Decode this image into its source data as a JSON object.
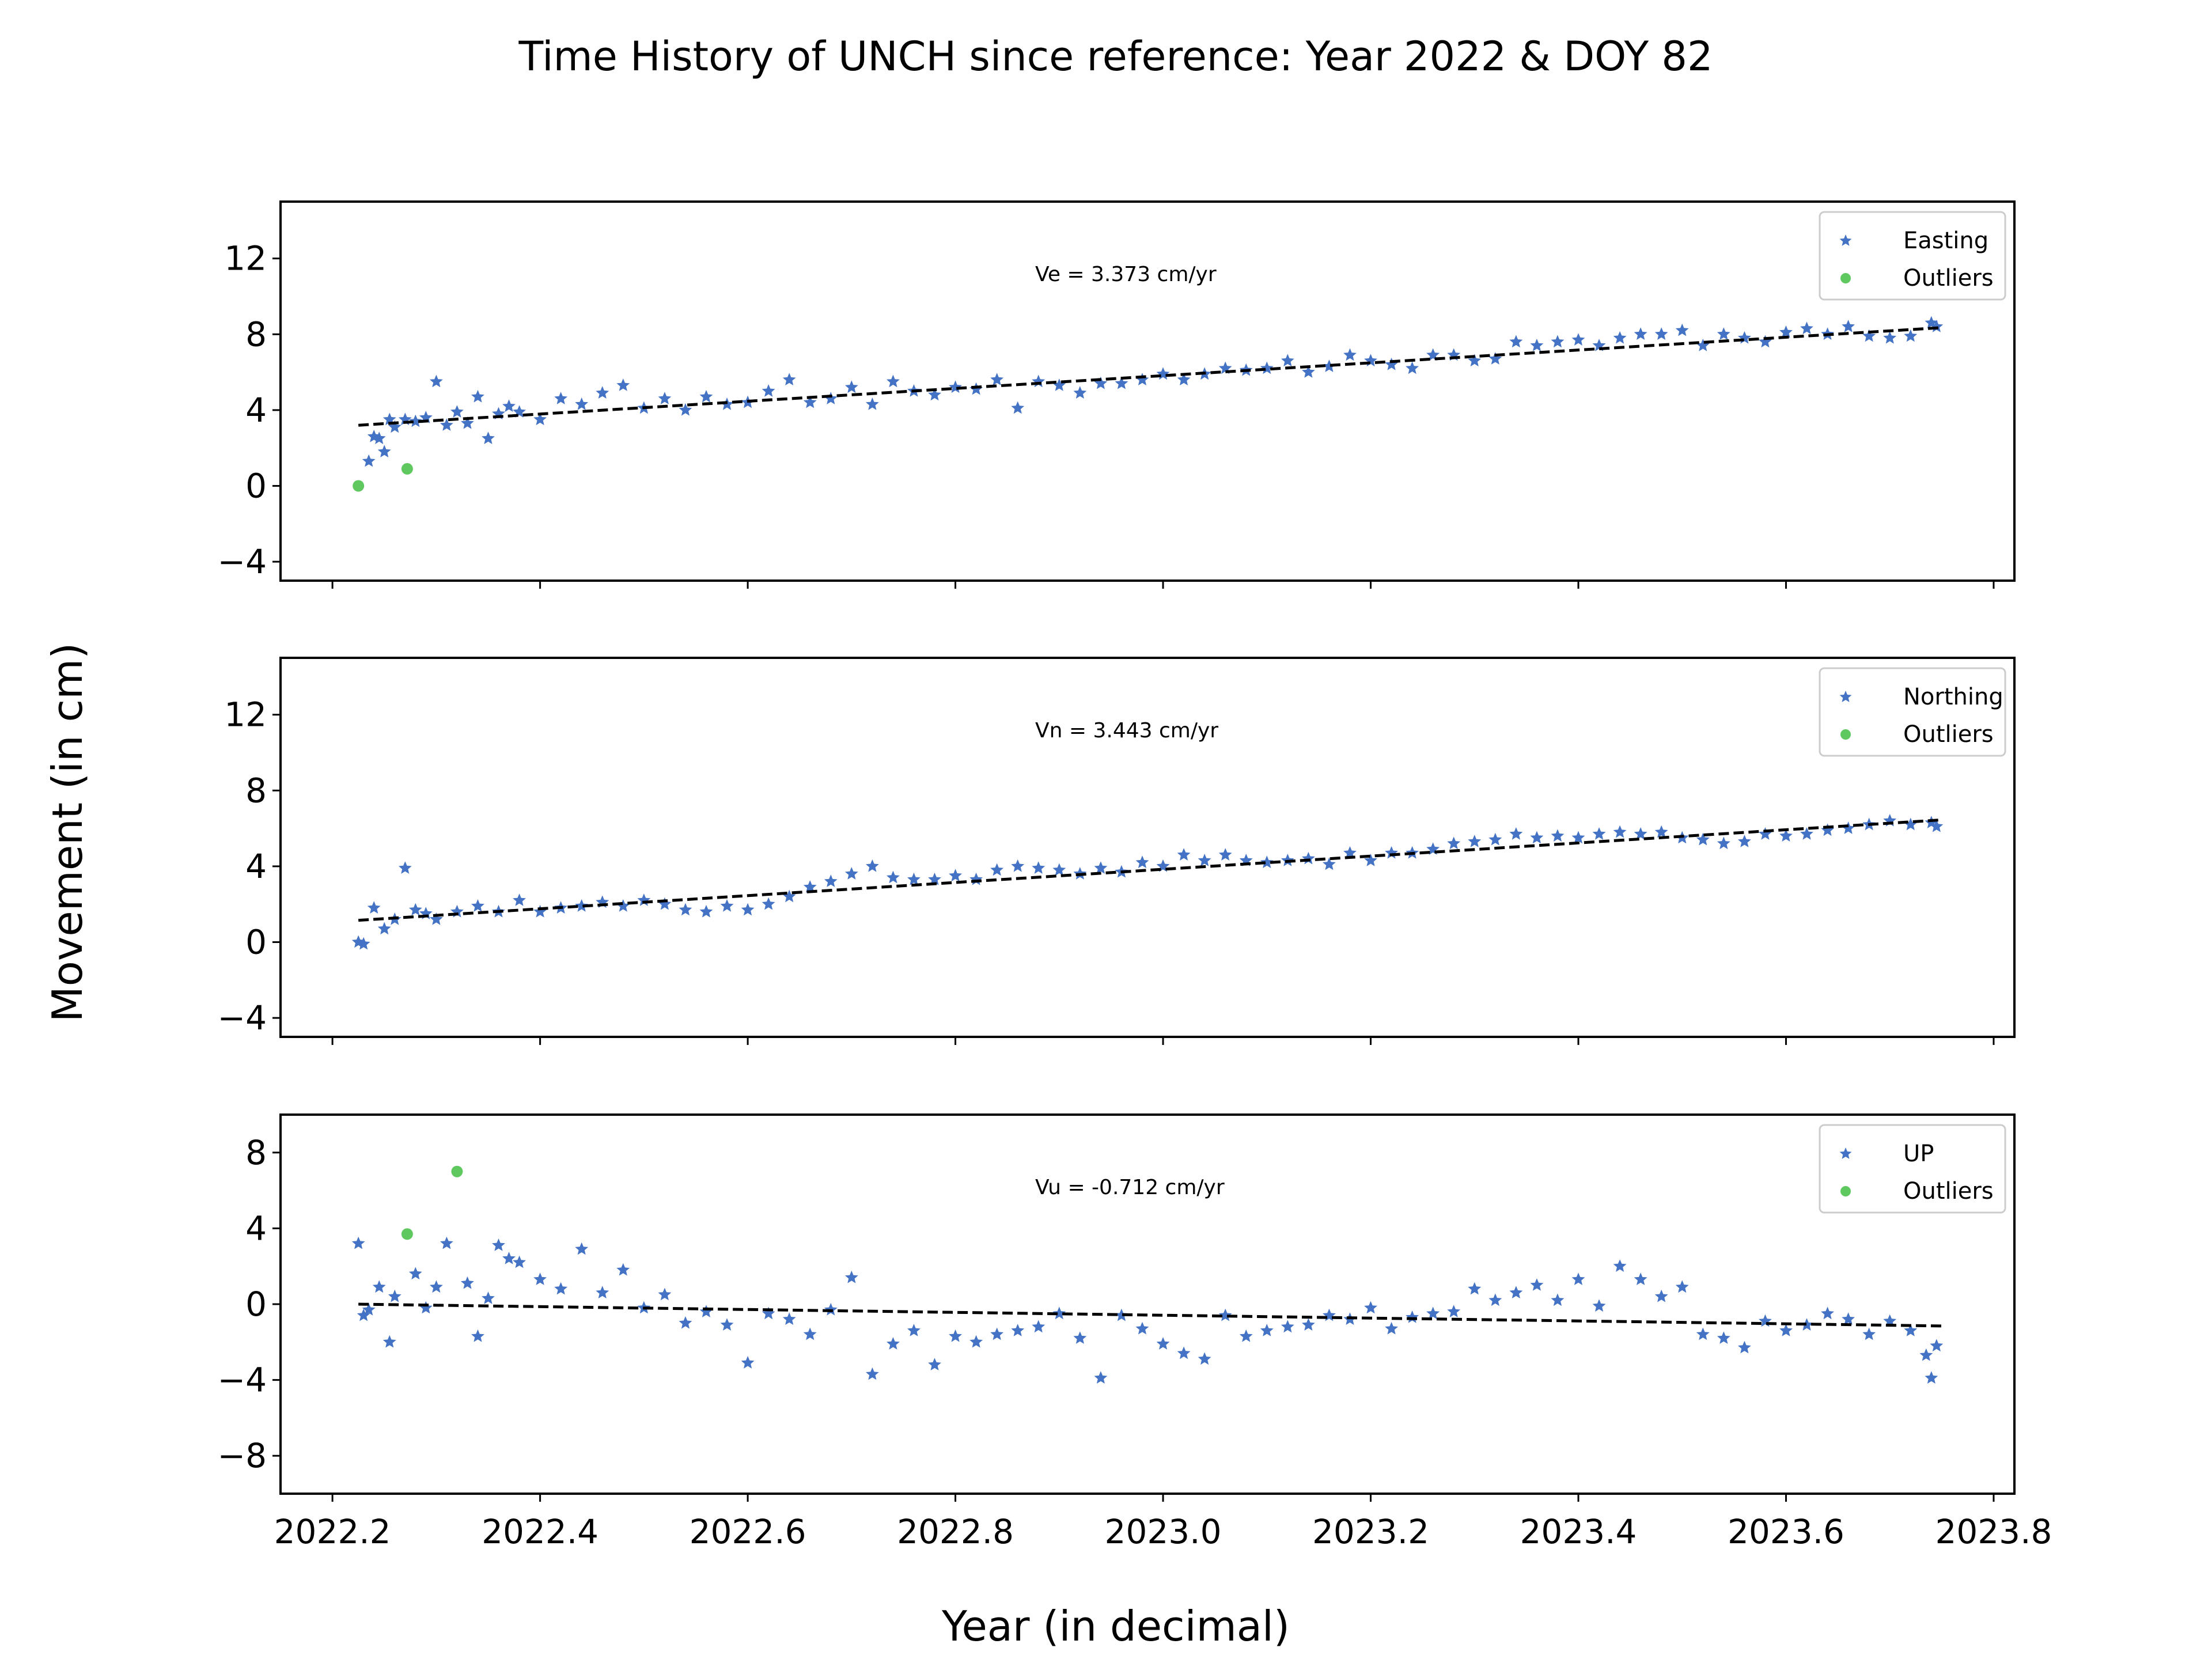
{
  "figure": {
    "title": "Time History of UNCH since reference: Year 2022 & DOY 82",
    "xlabel": "Year (in decimal)",
    "ylabel": "Movement (in cm)"
  },
  "colors": {
    "data": "#4472c4",
    "outliers": "#5fc95f",
    "trend": "#000000"
  },
  "chart_data": [
    {
      "type": "scatter",
      "panel": "easting",
      "legend": [
        "Easting",
        "Outliers"
      ],
      "legend_position": "upper right",
      "annotation": "Ve =  3.373 cm/yr",
      "xlim": [
        2022.15,
        2023.82
      ],
      "ylim": [
        -5,
        15
      ],
      "yticks": [
        -4,
        0,
        4,
        8,
        12
      ],
      "ytick_labels": [
        "−4",
        "0",
        "4",
        "8",
        "12"
      ],
      "xtick_labels_visible": false,
      "series": [
        {
          "name": "Easting",
          "marker": "star",
          "x": [
            2022.235,
            2022.24,
            2022.245,
            2022.25,
            2022.255,
            2022.26,
            2022.27,
            2022.28,
            2022.29,
            2022.3,
            2022.31,
            2022.32,
            2022.33,
            2022.34,
            2022.35,
            2022.36,
            2022.37,
            2022.38,
            2022.4,
            2022.42,
            2022.44,
            2022.46,
            2022.48,
            2022.5,
            2022.52,
            2022.54,
            2022.56,
            2022.58,
            2022.6,
            2022.62,
            2022.64,
            2022.66,
            2022.68,
            2022.7,
            2022.72,
            2022.74,
            2022.76,
            2022.78,
            2022.8,
            2022.82,
            2022.84,
            2022.86,
            2022.88,
            2022.9,
            2022.92,
            2022.94,
            2022.96,
            2022.98,
            2023.0,
            2023.02,
            2023.04,
            2023.06,
            2023.08,
            2023.1,
            2023.12,
            2023.14,
            2023.16,
            2023.18,
            2023.2,
            2023.22,
            2023.24,
            2023.26,
            2023.28,
            2023.3,
            2023.32,
            2023.34,
            2023.36,
            2023.38,
            2023.4,
            2023.42,
            2023.44,
            2023.46,
            2023.48,
            2023.5,
            2023.52,
            2023.54,
            2023.56,
            2023.58,
            2023.6,
            2023.62,
            2023.64,
            2023.66,
            2023.68,
            2023.7,
            2023.72,
            2023.74,
            2023.745
          ],
          "y": [
            1.3,
            2.6,
            2.5,
            1.8,
            3.5,
            3.1,
            3.5,
            3.4,
            3.6,
            5.5,
            3.2,
            3.9,
            3.3,
            4.7,
            2.5,
            3.8,
            4.2,
            3.9,
            3.5,
            4.6,
            4.3,
            4.9,
            5.3,
            4.1,
            4.6,
            4.0,
            4.7,
            4.3,
            4.4,
            5.0,
            5.6,
            4.4,
            4.6,
            5.2,
            4.3,
            5.5,
            5.0,
            4.8,
            5.2,
            5.1,
            5.6,
            4.1,
            5.5,
            5.3,
            4.9,
            5.4,
            5.4,
            5.6,
            5.9,
            5.6,
            5.9,
            6.2,
            6.1,
            6.2,
            6.6,
            6.0,
            6.3,
            6.9,
            6.6,
            6.4,
            6.2,
            6.9,
            6.9,
            6.6,
            6.7,
            7.6,
            7.4,
            7.6,
            7.7,
            7.4,
            7.8,
            8.0,
            8.0,
            8.2,
            7.4,
            8.0,
            7.8,
            7.6,
            8.1,
            8.3,
            8.0,
            8.4,
            7.9,
            7.8,
            7.9,
            8.6,
            8.4
          ]
        },
        {
          "name": "Outliers",
          "marker": "circle",
          "x": [
            2022.225,
            2022.272
          ],
          "y": [
            0.0,
            0.9
          ]
        }
      ],
      "trend": {
        "x": [
          2022.225,
          2023.75
        ],
        "y": [
          3.2,
          8.35
        ]
      }
    },
    {
      "type": "scatter",
      "panel": "northing",
      "legend": [
        "Northing",
        "Outliers"
      ],
      "legend_position": "upper right",
      "annotation": "Vn =  3.443 cm/yr",
      "xlim": [
        2022.15,
        2023.82
      ],
      "ylim": [
        -5,
        15
      ],
      "yticks": [
        -4,
        0,
        4,
        8,
        12
      ],
      "ytick_labels": [
        "−4",
        "0",
        "4",
        "8",
        "12"
      ],
      "xtick_labels_visible": false,
      "series": [
        {
          "name": "Northing",
          "marker": "star",
          "x": [
            2022.225,
            2022.23,
            2022.24,
            2022.25,
            2022.26,
            2022.27,
            2022.28,
            2022.29,
            2022.3,
            2022.32,
            2022.34,
            2022.36,
            2022.38,
            2022.4,
            2022.42,
            2022.44,
            2022.46,
            2022.48,
            2022.5,
            2022.52,
            2022.54,
            2022.56,
            2022.58,
            2022.6,
            2022.62,
            2022.64,
            2022.66,
            2022.68,
            2022.7,
            2022.72,
            2022.74,
            2022.76,
            2022.78,
            2022.8,
            2022.82,
            2022.84,
            2022.86,
            2022.88,
            2022.9,
            2022.92,
            2022.94,
            2022.96,
            2022.98,
            2023.0,
            2023.02,
            2023.04,
            2023.06,
            2023.08,
            2023.1,
            2023.12,
            2023.14,
            2023.16,
            2023.18,
            2023.2,
            2023.22,
            2023.24,
            2023.26,
            2023.28,
            2023.3,
            2023.32,
            2023.34,
            2023.36,
            2023.38,
            2023.4,
            2023.42,
            2023.44,
            2023.46,
            2023.48,
            2023.5,
            2023.52,
            2023.54,
            2023.56,
            2023.58,
            2023.6,
            2023.62,
            2023.64,
            2023.66,
            2023.68,
            2023.7,
            2023.72,
            2023.74,
            2023.745
          ],
          "y": [
            0.0,
            -0.1,
            1.8,
            0.7,
            1.2,
            3.9,
            1.7,
            1.5,
            1.2,
            1.6,
            1.9,
            1.6,
            2.2,
            1.6,
            1.8,
            1.9,
            2.1,
            1.9,
            2.2,
            2.0,
            1.7,
            1.6,
            1.9,
            1.7,
            2.0,
            2.4,
            2.9,
            3.2,
            3.6,
            4.0,
            3.4,
            3.3,
            3.3,
            3.5,
            3.3,
            3.8,
            4.0,
            3.9,
            3.8,
            3.6,
            3.9,
            3.7,
            4.2,
            4.0,
            4.6,
            4.3,
            4.6,
            4.3,
            4.2,
            4.3,
            4.4,
            4.1,
            4.7,
            4.3,
            4.7,
            4.7,
            4.9,
            5.2,
            5.3,
            5.4,
            5.7,
            5.5,
            5.6,
            5.5,
            5.7,
            5.8,
            5.7,
            5.8,
            5.5,
            5.4,
            5.2,
            5.3,
            5.7,
            5.6,
            5.7,
            5.9,
            6.0,
            6.2,
            6.4,
            6.2,
            6.3,
            6.1
          ]
        },
        {
          "name": "Outliers",
          "marker": "circle",
          "x": [],
          "y": []
        }
      ],
      "trend": {
        "x": [
          2022.225,
          2023.75
        ],
        "y": [
          1.15,
          6.45
        ]
      }
    },
    {
      "type": "scatter",
      "panel": "up",
      "legend": [
        "UP",
        "Outliers"
      ],
      "legend_position": "upper right",
      "annotation": "Vu = -0.712 cm/yr",
      "xlim": [
        2022.15,
        2023.82
      ],
      "ylim": [
        -10,
        10
      ],
      "yticks": [
        -8,
        -4,
        0,
        4,
        8
      ],
      "ytick_labels": [
        "−8",
        "−4",
        "0",
        "4",
        "8"
      ],
      "xtick_labels_visible": true,
      "xticks": [
        2022.2,
        2022.4,
        2022.6,
        2022.8,
        2023.0,
        2023.2,
        2023.4,
        2023.6,
        2023.8
      ],
      "xtick_labels": [
        "2022.2",
        "2022.4",
        "2022.6",
        "2022.8",
        "2023.0",
        "2023.2",
        "2023.4",
        "2023.6",
        "2023.8"
      ],
      "series": [
        {
          "name": "UP",
          "marker": "star",
          "x": [
            2022.225,
            2022.23,
            2022.235,
            2022.245,
            2022.255,
            2022.26,
            2022.28,
            2022.29,
            2022.3,
            2022.31,
            2022.33,
            2022.34,
            2022.35,
            2022.36,
            2022.37,
            2022.38,
            2022.4,
            2022.42,
            2022.44,
            2022.46,
            2022.48,
            2022.5,
            2022.52,
            2022.54,
            2022.56,
            2022.58,
            2022.6,
            2022.62,
            2022.64,
            2022.66,
            2022.68,
            2022.7,
            2022.72,
            2022.74,
            2022.76,
            2022.78,
            2022.8,
            2022.82,
            2022.84,
            2022.86,
            2022.88,
            2022.9,
            2022.92,
            2022.94,
            2022.96,
            2022.98,
            2023.0,
            2023.02,
            2023.04,
            2023.06,
            2023.08,
            2023.1,
            2023.12,
            2023.14,
            2023.16,
            2023.18,
            2023.2,
            2023.22,
            2023.24,
            2023.26,
            2023.28,
            2023.3,
            2023.32,
            2023.34,
            2023.36,
            2023.38,
            2023.4,
            2023.42,
            2023.44,
            2023.46,
            2023.48,
            2023.5,
            2023.52,
            2023.54,
            2023.56,
            2023.58,
            2023.6,
            2023.62,
            2023.64,
            2023.66,
            2023.68,
            2023.7,
            2023.72,
            2023.735,
            2023.74,
            2023.745
          ],
          "y": [
            3.2,
            -0.6,
            -0.3,
            0.9,
            -2.0,
            0.4,
            1.6,
            -0.2,
            0.9,
            3.2,
            1.1,
            -1.7,
            0.3,
            3.1,
            2.4,
            2.2,
            1.3,
            0.8,
            2.9,
            0.6,
            1.8,
            -0.2,
            0.5,
            -1.0,
            -0.4,
            -1.1,
            -3.1,
            -0.5,
            -0.8,
            -1.6,
            -0.3,
            1.4,
            -3.7,
            -2.1,
            -1.4,
            -3.2,
            -1.7,
            -2.0,
            -1.6,
            -1.4,
            -1.2,
            -0.5,
            -1.8,
            -3.9,
            -0.6,
            -1.3,
            -2.1,
            -2.6,
            -2.9,
            -0.6,
            -1.7,
            -1.4,
            -1.2,
            -1.1,
            -0.6,
            -0.8,
            -0.2,
            -1.3,
            -0.7,
            -0.5,
            -0.4,
            0.8,
            0.2,
            0.6,
            1.0,
            0.2,
            1.3,
            -0.1,
            2.0,
            1.3,
            0.4,
            0.9,
            -1.6,
            -1.8,
            -2.3,
            -0.9,
            -1.4,
            -1.1,
            -0.5,
            -0.8,
            -1.6,
            -0.9,
            -1.4,
            -2.7,
            -3.9,
            -2.2
          ]
        },
        {
          "name": "Outliers",
          "marker": "circle",
          "x": [
            2022.272,
            2022.32
          ],
          "y": [
            3.7,
            7.0
          ]
        }
      ],
      "trend": {
        "x": [
          2022.225,
          2023.75
        ],
        "y": [
          0.0,
          -1.15
        ]
      }
    }
  ]
}
